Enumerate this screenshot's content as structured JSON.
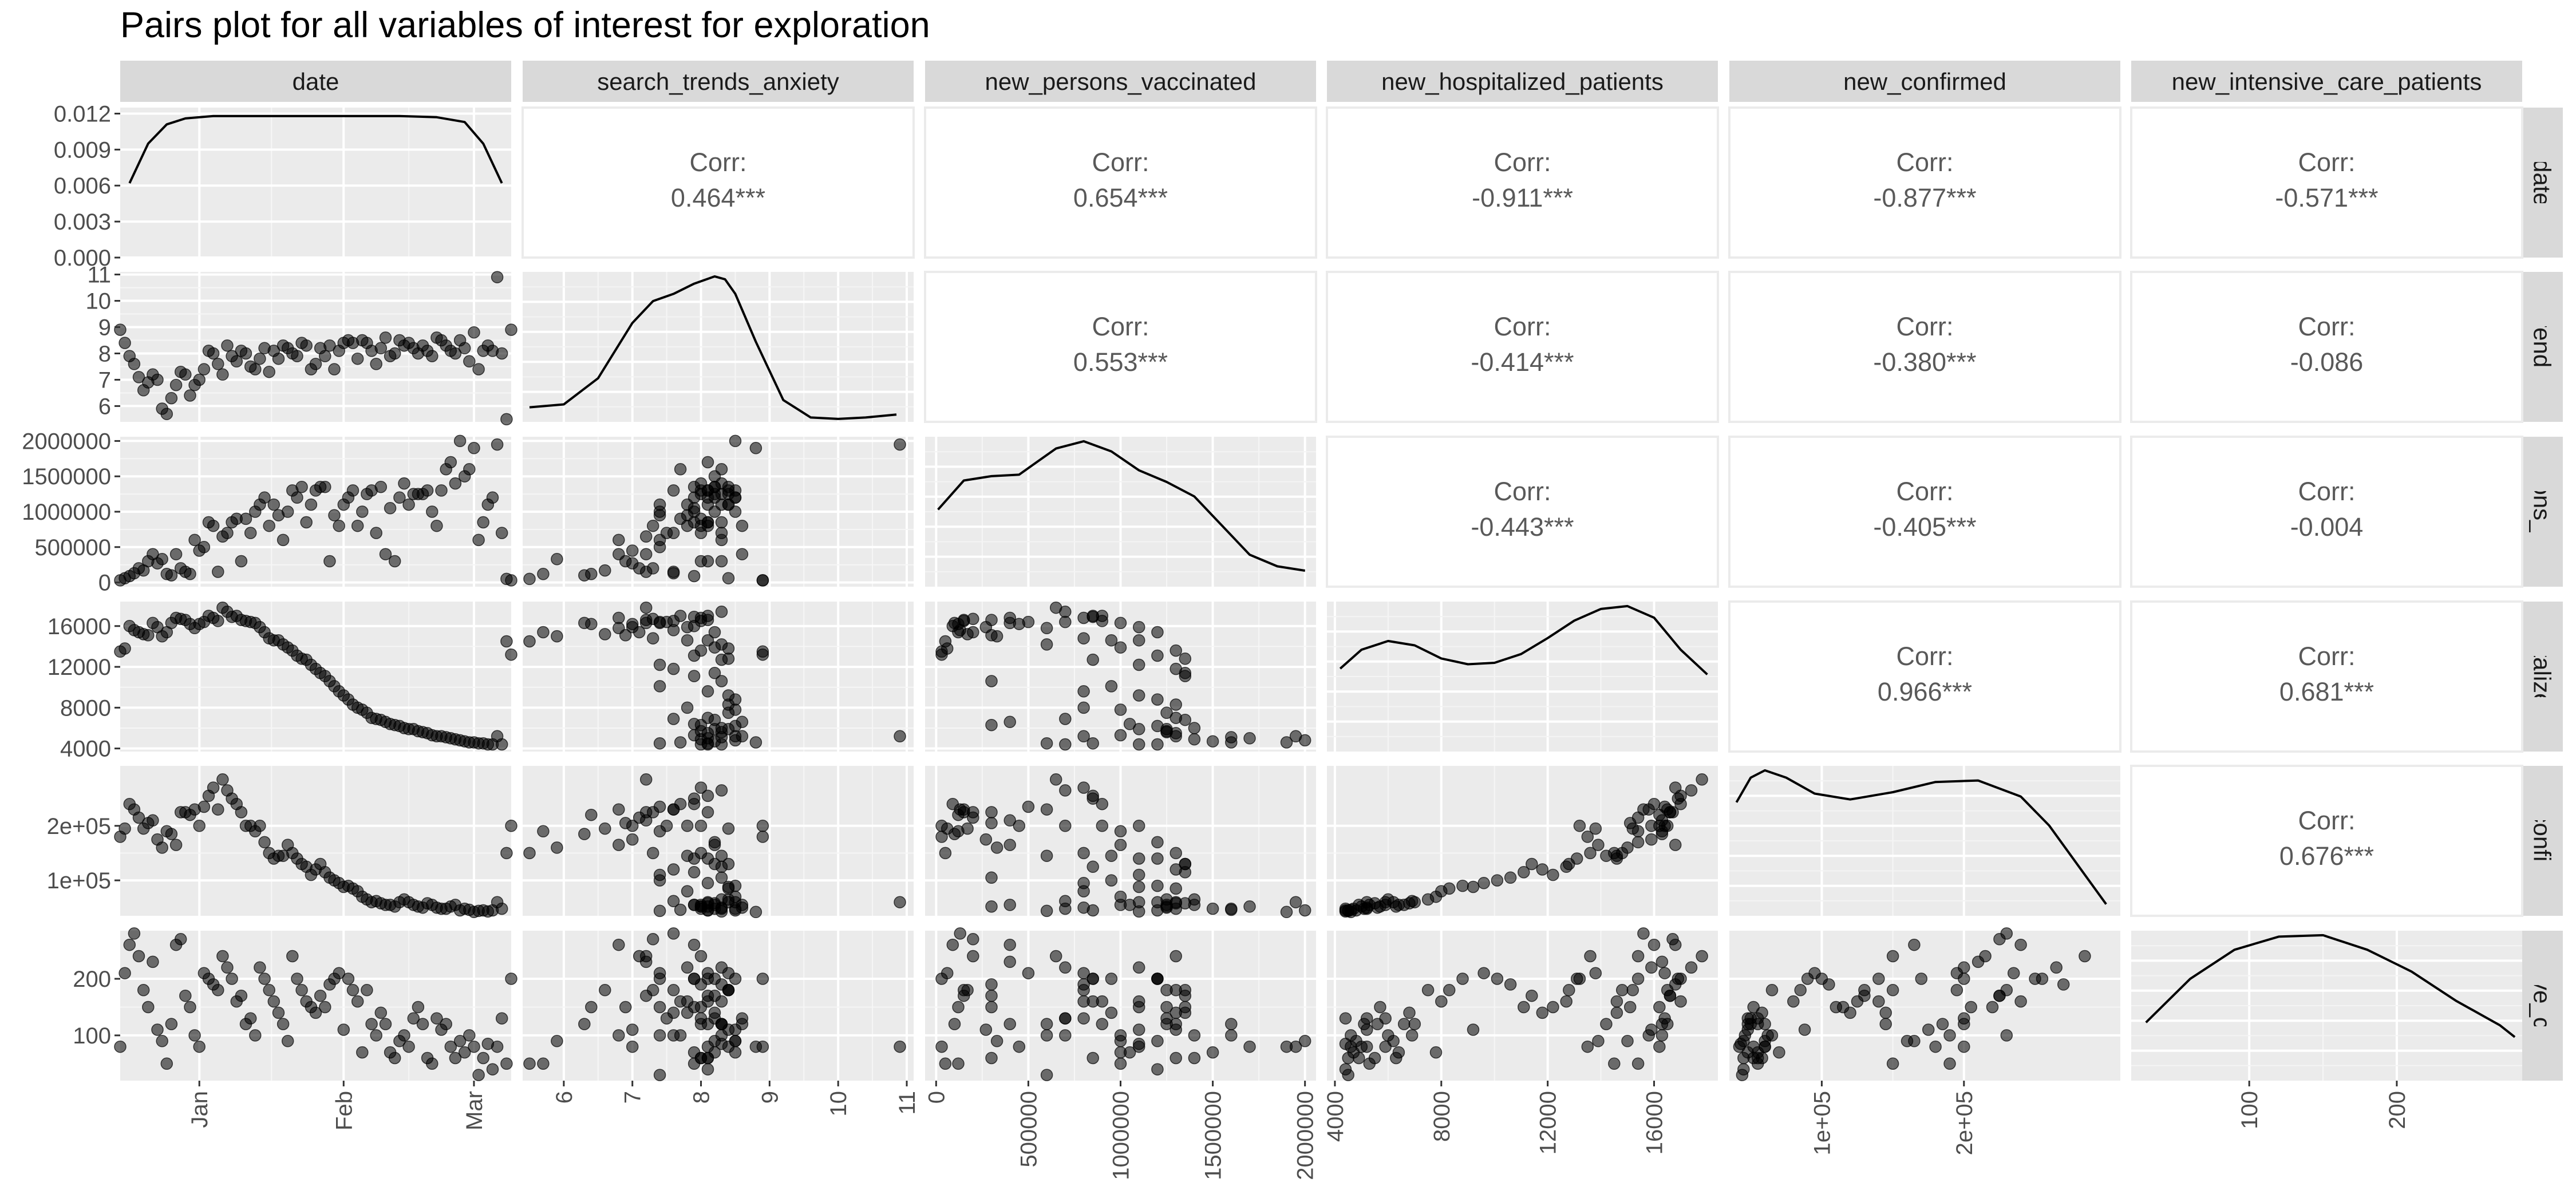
{
  "chart_data": {
    "type": "scatter",
    "title": "Pairs plot for all variables of interest for exploration",
    "variables": [
      "date",
      "search_trends_anxiety",
      "new_persons_vaccinated",
      "new_hospitalized_patients",
      "new_confirmed",
      "new_intensive_care_patients"
    ],
    "row_strip_labels": [
      "date",
      "ch_trends_an",
      "persons_vacci",
      "ospitalized_p",
      "ew_confirmec",
      "ensive_care_"
    ],
    "corr_label": "Corr:",
    "correlations": {
      "0-1": "0.464***",
      "0-2": "0.654***",
      "0-3": "-0.911***",
      "0-4": "-0.877***",
      "0-5": "-0.571***",
      "1-2": "0.553***",
      "1-3": "-0.414***",
      "1-4": "-0.380***",
      "1-5": "-0.086",
      "2-3": "-0.443***",
      "2-4": "-0.405***",
      "2-5": "-0.004",
      "3-4": "0.966***",
      "3-5": "0.681***",
      "4-5": "0.676***"
    },
    "x_ticks": [
      [
        {
          "v": 17,
          "label": "Jan"
        },
        {
          "v": 48,
          "label": "Feb"
        },
        {
          "v": 76,
          "label": "Mar"
        }
      ],
      [
        {
          "v": 6,
          "label": "6"
        },
        {
          "v": 7,
          "label": "7"
        },
        {
          "v": 8,
          "label": "8"
        },
        {
          "v": 9,
          "label": "9"
        },
        {
          "v": 10,
          "label": "10"
        },
        {
          "v": 11,
          "label": "11"
        }
      ],
      [
        {
          "v": 0,
          "label": "0"
        },
        {
          "v": 500000,
          "label": "500000"
        },
        {
          "v": 1000000,
          "label": "1000000"
        },
        {
          "v": 1500000,
          "label": "1500000"
        },
        {
          "v": 2000000,
          "label": "2000000"
        }
      ],
      [
        {
          "v": 4000,
          "label": "4000"
        },
        {
          "v": 8000,
          "label": "8000"
        },
        {
          "v": 12000,
          "label": "12000"
        },
        {
          "v": 16000,
          "label": "16000"
        }
      ],
      [
        {
          "v": 100000,
          "label": "1e+05"
        },
        {
          "v": 200000,
          "label": "2e+05"
        }
      ],
      [
        {
          "v": 100,
          "label": "100"
        },
        {
          "v": 200,
          "label": "200"
        }
      ]
    ],
    "y_ticks": [
      [
        {
          "v": 0,
          "label": "0.000"
        },
        {
          "v": 0.003,
          "label": "0.003"
        },
        {
          "v": 0.006,
          "label": "0.006"
        },
        {
          "v": 0.009,
          "label": "0.009"
        },
        {
          "v": 0.012,
          "label": "0.012"
        }
      ],
      [
        {
          "v": 6,
          "label": "6"
        },
        {
          "v": 7,
          "label": "7"
        },
        {
          "v": 8,
          "label": "8"
        },
        {
          "v": 9,
          "label": "9"
        },
        {
          "v": 10,
          "label": "10"
        },
        {
          "v": 11,
          "label": "11"
        }
      ],
      [
        {
          "v": 0,
          "label": "0"
        },
        {
          "v": 500000,
          "label": "500000"
        },
        {
          "v": 1000000,
          "label": "1000000"
        },
        {
          "v": 1500000,
          "label": "1500000"
        },
        {
          "v": 2000000,
          "label": "2000000"
        }
      ],
      [
        {
          "v": 4000,
          "label": "4000"
        },
        {
          "v": 8000,
          "label": "8000"
        },
        {
          "v": 12000,
          "label": "12000"
        },
        {
          "v": 16000,
          "label": "16000"
        }
      ],
      [
        {
          "v": 100000,
          "label": "1e+05"
        },
        {
          "v": 200000,
          "label": "2e+05"
        }
      ],
      [
        {
          "v": 100,
          "label": "100"
        },
        {
          "v": 200,
          "label": "200"
        }
      ]
    ],
    "ranges": [
      [
        0,
        84
      ],
      [
        5.4,
        11.1
      ],
      [
        -60000,
        2060000
      ],
      [
        3700,
        18400
      ],
      [
        35000,
        310000
      ],
      [
        20,
        285
      ]
    ],
    "density_ylim": [
      0,
      0.0125
    ],
    "densities": [
      {
        "x": [
          2,
          6,
          10,
          14,
          20,
          30,
          40,
          50,
          60,
          68,
          74,
          78,
          82
        ],
        "y": [
          0.0062,
          0.0095,
          0.0111,
          0.0116,
          0.0118,
          0.0118,
          0.0118,
          0.0118,
          0.0118,
          0.0117,
          0.0113,
          0.0095,
          0.0062
        ]
      },
      {
        "x": [
          5.5,
          6.0,
          6.5,
          7.0,
          7.3,
          7.6,
          7.9,
          8.2,
          8.35,
          8.5,
          8.8,
          9.2,
          9.6,
          10.0,
          10.4,
          10.85
        ],
        "y": [
          0.1,
          0.12,
          0.3,
          0.68,
          0.83,
          0.88,
          0.95,
          1.0,
          0.98,
          0.88,
          0.55,
          0.15,
          0.03,
          0.02,
          0.03,
          0.05
        ]
      },
      {
        "x": [
          10000,
          150000,
          300000,
          450000,
          550000,
          650000,
          800000,
          950000,
          1100000,
          1250000,
          1400000,
          1550000,
          1700000,
          1850000,
          2000000
        ],
        "y": [
          0.53,
          0.73,
          0.76,
          0.77,
          0.86,
          0.95,
          1.0,
          0.93,
          0.8,
          0.72,
          0.62,
          0.42,
          0.22,
          0.14,
          0.11
        ]
      },
      {
        "x": [
          4200,
          5000,
          6000,
          7000,
          8000,
          9000,
          10000,
          11000,
          12000,
          13000,
          14000,
          15000,
          16000,
          17000,
          18000
        ],
        "y": [
          0.57,
          0.7,
          0.76,
          0.73,
          0.64,
          0.6,
          0.61,
          0.67,
          0.78,
          0.9,
          0.98,
          1.0,
          0.92,
          0.7,
          0.53
        ]
      },
      {
        "x": [
          40000,
          50000,
          60000,
          75000,
          95000,
          120000,
          150000,
          180000,
          210000,
          240000,
          260000,
          280000,
          300000
        ],
        "y": [
          0.78,
          0.95,
          1.0,
          0.95,
          0.84,
          0.8,
          0.85,
          0.92,
          0.93,
          0.82,
          0.62,
          0.35,
          0.08
        ]
      },
      {
        "x": [
          30,
          60,
          90,
          120,
          150,
          180,
          210,
          240,
          270,
          280
        ],
        "y": [
          0.4,
          0.7,
          0.9,
          0.99,
          1.0,
          0.9,
          0.75,
          0.55,
          0.38,
          0.3
        ]
      }
    ],
    "observations": [
      [
        "2020-12-03",
        8.9,
        30000,
        13500,
        180000,
        80
      ],
      [
        "2020-12-04",
        8.4,
        60000,
        13800,
        195000,
        210
      ],
      [
        "2020-12-05",
        7.9,
        90000,
        16000,
        240000,
        260
      ],
      [
        "2020-12-06",
        7.6,
        130000,
        15600,
        230000,
        280
      ],
      [
        "2020-12-07",
        7.1,
        200000,
        15400,
        215000,
        240
      ],
      [
        "2020-12-08",
        6.6,
        170000,
        15200,
        195000,
        180
      ],
      [
        "2020-12-09",
        6.9,
        300000,
        15100,
        205000,
        150
      ],
      [
        "2020-12-10",
        7.2,
        400000,
        16300,
        210000,
        230
      ],
      [
        "2020-12-11",
        7.0,
        270000,
        15900,
        175000,
        110
      ],
      [
        "2020-12-12",
        5.9,
        330000,
        15000,
        160000,
        90
      ],
      [
        "2020-12-13",
        5.7,
        120000,
        15400,
        190000,
        50
      ],
      [
        "2020-12-14",
        6.3,
        100000,
        16300,
        185000,
        120
      ],
      [
        "2020-12-15",
        6.8,
        400000,
        16800,
        165000,
        260
      ],
      [
        "2020-12-16",
        7.3,
        200000,
        16700,
        225000,
        270
      ],
      [
        "2020-12-17",
        7.2,
        150000,
        16600,
        225000,
        170
      ],
      [
        "2020-12-18",
        6.4,
        120000,
        16200,
        220000,
        150
      ],
      [
        "2020-12-19",
        6.8,
        600000,
        15800,
        230000,
        100
      ],
      [
        "2020-12-20",
        7.0,
        450000,
        16200,
        200000,
        80
      ],
      [
        "2020-12-21",
        7.4,
        500000,
        16400,
        235000,
        210
      ],
      [
        "2020-12-22",
        8.1,
        850000,
        17000,
        255000,
        200
      ],
      [
        "2020-12-23",
        8.0,
        800000,
        16800,
        270000,
        190
      ],
      [
        "2020-12-24",
        7.6,
        150000,
        16500,
        230000,
        180
      ],
      [
        "2020-12-25",
        7.2,
        650000,
        17800,
        285000,
        240
      ],
      [
        "2020-12-26",
        8.3,
        700000,
        17400,
        265000,
        220
      ],
      [
        "2020-12-27",
        7.9,
        850000,
        16900,
        250000,
        200
      ],
      [
        "2020-12-28",
        7.7,
        900000,
        17000,
        240000,
        160
      ],
      [
        "2020-12-29",
        8.1,
        300000,
        16600,
        225000,
        170
      ],
      [
        "2020-12-30",
        8.0,
        900000,
        16500,
        200000,
        120
      ],
      [
        "2020-12-31",
        7.5,
        700000,
        16400,
        200000,
        130
      ],
      [
        "2021-01-01",
        7.4,
        1000000,
        16300,
        190000,
        100
      ],
      [
        "2021-01-02",
        7.8,
        1100000,
        15900,
        200000,
        220
      ],
      [
        "2021-01-03",
        8.2,
        1200000,
        15400,
        170000,
        200
      ],
      [
        "2021-01-04",
        7.3,
        800000,
        14800,
        150000,
        180
      ],
      [
        "2021-01-05",
        8.1,
        1100000,
        14600,
        140000,
        160
      ],
      [
        "2021-01-06",
        7.8,
        950000,
        14600,
        145000,
        140
      ],
      [
        "2021-01-07",
        8.3,
        600000,
        14200,
        145000,
        120
      ],
      [
        "2021-01-08",
        8.2,
        1000000,
        13900,
        165000,
        90
      ],
      [
        "2021-01-09",
        8.0,
        1300000,
        13600,
        150000,
        240
      ],
      [
        "2021-01-10",
        7.9,
        1200000,
        13100,
        140000,
        200
      ],
      [
        "2021-01-11",
        8.4,
        1350000,
        12800,
        130000,
        180
      ],
      [
        "2021-01-12",
        8.3,
        850000,
        12700,
        125000,
        160
      ],
      [
        "2021-01-13",
        7.4,
        1100000,
        12200,
        110000,
        150
      ],
      [
        "2021-01-14",
        7.6,
        1300000,
        11800,
        120000,
        140
      ],
      [
        "2021-01-15",
        8.2,
        1350000,
        11400,
        130000,
        170
      ],
      [
        "2021-01-16",
        7.9,
        1350000,
        11100,
        115000,
        150
      ],
      [
        "2021-01-17",
        8.3,
        300000,
        10600,
        105000,
        190
      ],
      [
        "2021-01-18",
        7.4,
        950000,
        10100,
        100000,
        200
      ],
      [
        "2021-01-19",
        8.1,
        800000,
        9600,
        95000,
        210
      ],
      [
        "2021-01-20",
        8.4,
        1100000,
        9200,
        88000,
        110
      ],
      [
        "2021-01-21",
        8.5,
        1200000,
        8800,
        90000,
        200
      ],
      [
        "2021-01-22",
        8.4,
        1300000,
        8300,
        85000,
        180
      ],
      [
        "2021-01-23",
        7.8,
        800000,
        8000,
        80000,
        160
      ],
      [
        "2021-01-24",
        8.5,
        1000000,
        7800,
        70000,
        70
      ],
      [
        "2021-01-25",
        8.4,
        1250000,
        7500,
        65000,
        180
      ],
      [
        "2021-01-26",
        8.1,
        1300000,
        7000,
        60000,
        120
      ],
      [
        "2021-01-27",
        7.6,
        700000,
        6900,
        62000,
        100
      ],
      [
        "2021-01-28",
        8.2,
        1350000,
        6800,
        58000,
        140
      ],
      [
        "2021-01-29",
        8.6,
        400000,
        6600,
        55000,
        120
      ],
      [
        "2021-01-30",
        7.9,
        1050000,
        6400,
        55000,
        70
      ],
      [
        "2021-01-31",
        8.0,
        300000,
        6300,
        52000,
        60
      ],
      [
        "2021-02-01",
        8.5,
        1200000,
        6200,
        60000,
        90
      ],
      [
        "2021-02-02",
        8.3,
        1400000,
        6000,
        65000,
        100
      ],
      [
        "2021-02-03",
        8.4,
        1100000,
        5900,
        60000,
        80
      ],
      [
        "2021-02-04",
        8.2,
        1250000,
        5900,
        55000,
        130
      ],
      [
        "2021-02-05",
        8.0,
        1250000,
        5700,
        52000,
        150
      ],
      [
        "2021-02-06",
        8.3,
        1250000,
        5600,
        50000,
        120
      ],
      [
        "2021-02-07",
        8.1,
        1300000,
        5500,
        58000,
        60
      ],
      [
        "2021-02-08",
        7.9,
        1000000,
        5300,
        55000,
        50
      ],
      [
        "2021-02-09",
        8.6,
        800000,
        5200,
        50000,
        130
      ],
      [
        "2021-02-10",
        8.5,
        1300000,
        5200,
        48000,
        110
      ],
      [
        "2021-02-11",
        8.3,
        1600000,
        5100,
        48000,
        120
      ],
      [
        "2021-02-12",
        8.1,
        1700000,
        5000,
        52000,
        80
      ],
      [
        "2021-02-13",
        8.0,
        1400000,
        4900,
        55000,
        60
      ],
      [
        "2021-02-14",
        8.5,
        2000000,
        4800,
        45000,
        90
      ],
      [
        "2021-02-15",
        8.2,
        1500000,
        4700,
        48000,
        70
      ],
      [
        "2021-02-16",
        7.7,
        1600000,
        4600,
        46000,
        100
      ],
      [
        "2021-02-17",
        8.8,
        1900000,
        4600,
        42000,
        80
      ],
      [
        "2021-02-18",
        7.4,
        600000,
        4500,
        44000,
        30
      ],
      [
        "2021-02-19",
        8.1,
        850000,
        4500,
        45000,
        60
      ],
      [
        "2021-02-20",
        8.3,
        1100000,
        4400,
        43000,
        85
      ],
      [
        "2021-02-21",
        8.1,
        1200000,
        4400,
        45000,
        40
      ],
      [
        "2021-02-22",
        10.9,
        1950000,
        5200,
        60000,
        80
      ],
      [
        "2021-02-23",
        8.0,
        700000,
        4400,
        48000,
        130
      ],
      [
        "2021-02-24",
        5.5,
        50000,
        14500,
        150000,
        50
      ],
      [
        "2021-02-25",
        8.9,
        30000,
        13200,
        200000,
        200
      ]
    ]
  }
}
